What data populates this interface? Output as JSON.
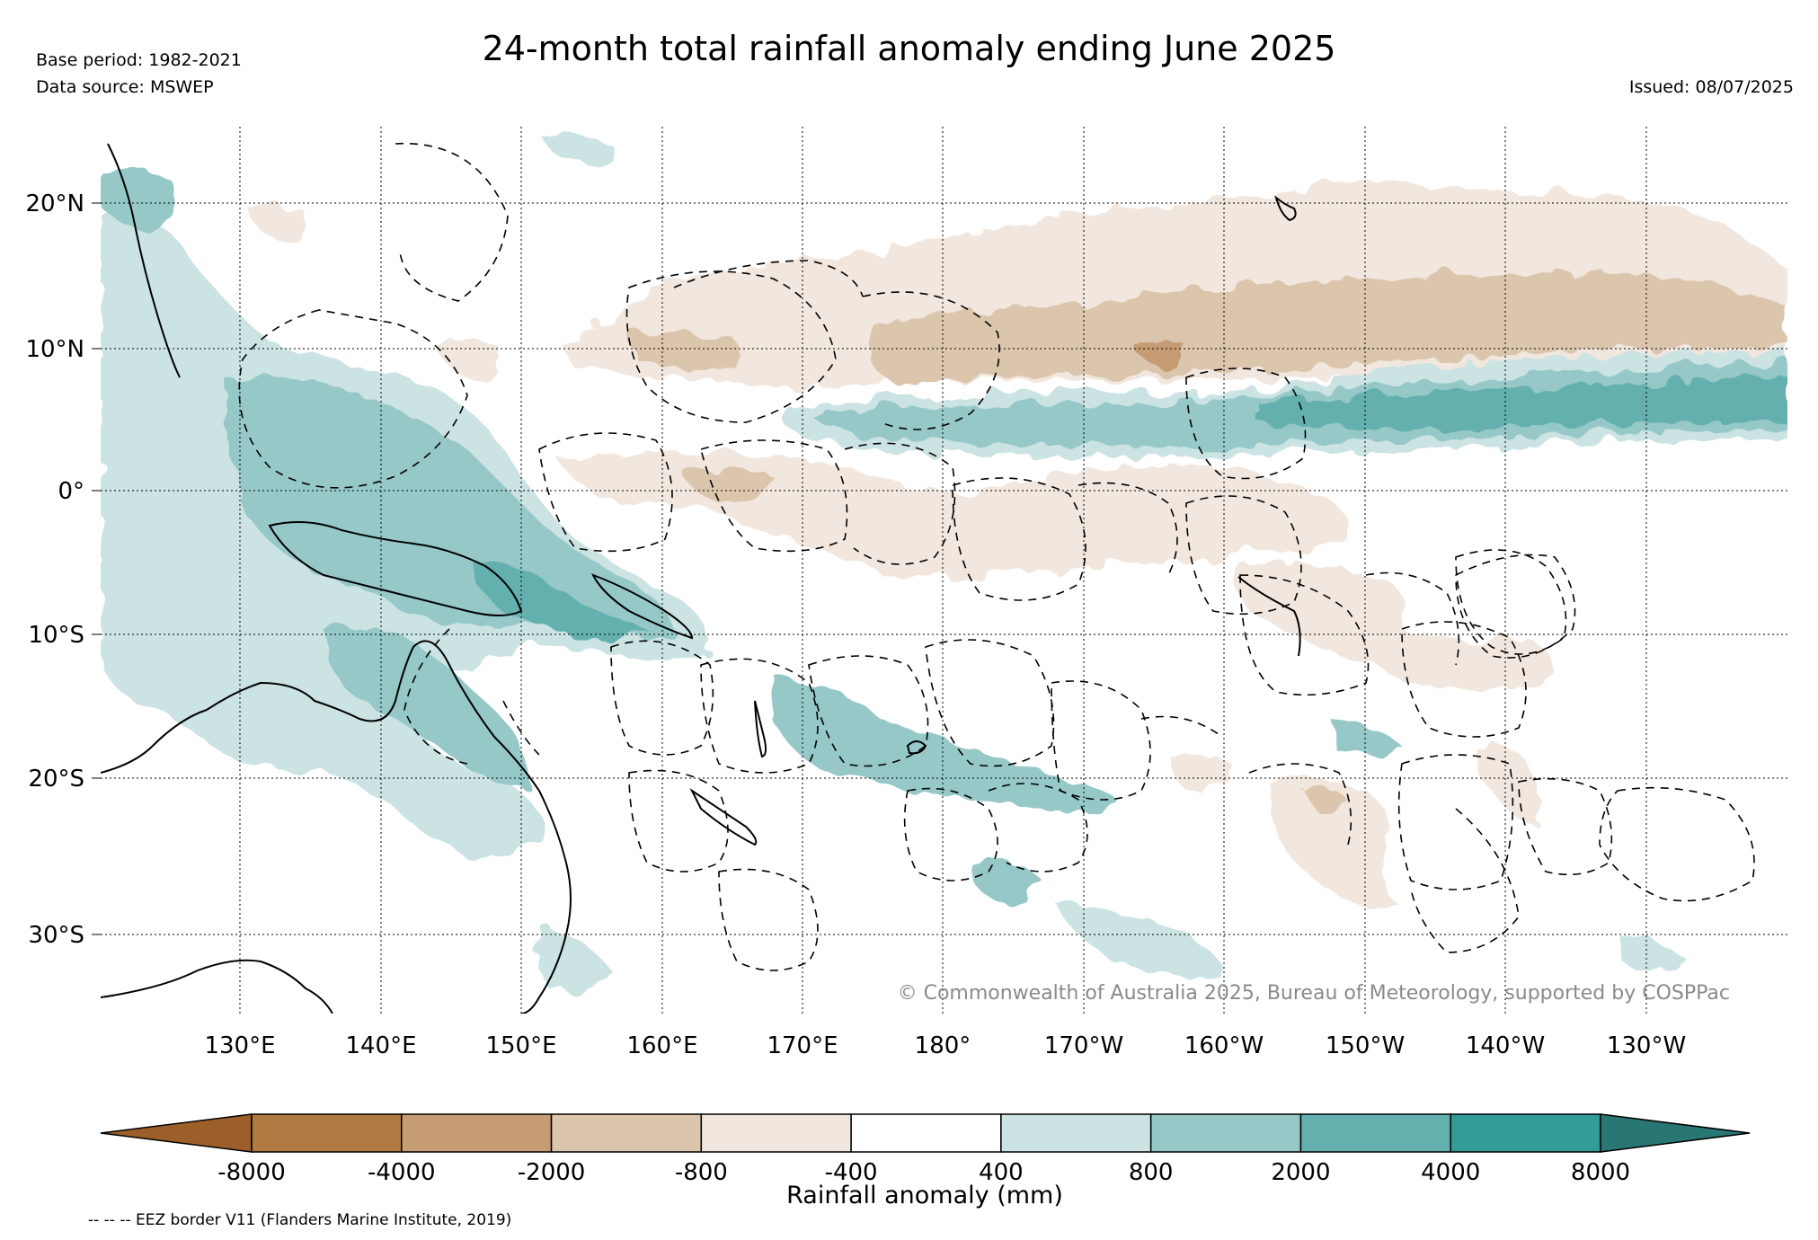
{
  "header": {
    "title": "24-month total rainfall anomaly ending June 2025",
    "base_period": "Base period: 1982-2021",
    "data_source": "Data source: MSWEP",
    "issued": "Issued: 08/07/2025"
  },
  "map": {
    "lat_labels": [
      "20°N",
      "10°N",
      "0°",
      "10°S",
      "20°S",
      "30°S"
    ],
    "lon_labels": [
      "130°E",
      "140°E",
      "150°E",
      "160°E",
      "170°E",
      "180°",
      "170°W",
      "160°W",
      "150°W",
      "140°W",
      "130°W"
    ],
    "copyright": "© Commonwealth of Australia 2025, Bureau of Meteorology, supported by COSPPac",
    "extent": {
      "lon_min": 120,
      "lon_max": 240,
      "lat_min": -36,
      "lat_max": 25
    },
    "dry_anomaly_regions": [
      "Northern Pacific band 10°N–20°N from 160°E to 125°W",
      "Equatorial Kiribati region 160°E–160°W",
      "French Polynesia / Cook Islands 160°W–140°W"
    ],
    "wet_anomaly_regions": [
      "ITCZ band 3°N–8°N from 175°E to 120°W",
      "Maritime Continent, Papua New Guinea and Solomon Islands",
      "Vanuatu, Fiji, Tonga 15°S–22°S",
      "North-east Australia"
    ]
  },
  "colorbar": {
    "label": "Rainfall anomaly (mm)",
    "tick_labels": [
      "-8000",
      "-4000",
      "-2000",
      "-800",
      "-400",
      "400",
      "800",
      "2000",
      "4000",
      "8000"
    ],
    "colors": [
      "#9c5f2a",
      "#b07a43",
      "#c69c74",
      "#dcc5ad",
      "#f1e7de",
      "#ffffff",
      "#cce3e3",
      "#96c8c8",
      "#64b0af",
      "#339b98",
      "#287775"
    ]
  },
  "footnote": "-- -- -- EEZ border V11 (Flanders Marine Institute, 2019)"
}
